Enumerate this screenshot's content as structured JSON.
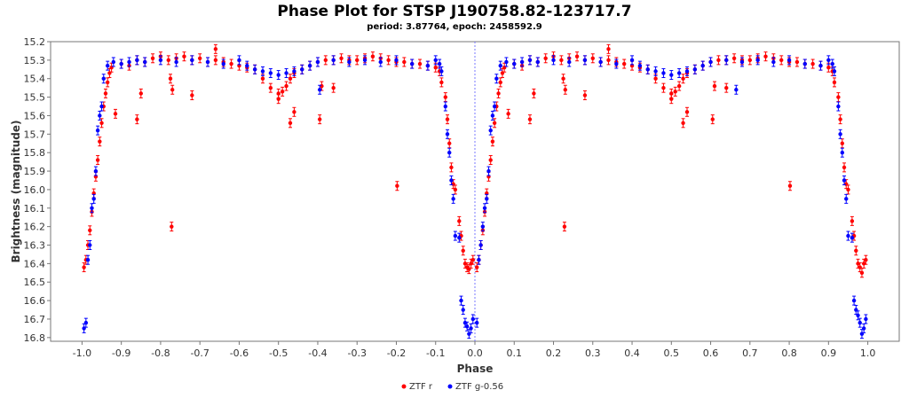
{
  "chart_data": {
    "type": "scatter",
    "title": "Phase Plot for STSP J190758.82-123717.7",
    "subtitle": "period: 3.87764, epoch: 2458592.9",
    "xlabel": "Phase",
    "ylabel": "Brightness (magnitude)",
    "xlim": [
      -1.08,
      1.08
    ],
    "ylim": [
      15.2,
      16.82
    ],
    "y_inverted": true,
    "xticks": [
      "-1.0",
      "-0.9",
      "-0.8",
      "-0.7",
      "-0.6",
      "-0.5",
      "-0.4",
      "-0.3",
      "-0.2",
      "-0.1",
      "0.0",
      "0.1",
      "0.2",
      "0.3",
      "0.4",
      "0.5",
      "0.6",
      "0.7",
      "0.8",
      "0.9",
      "1.0"
    ],
    "yticks": [
      "15.2",
      "15.3",
      "15.4",
      "15.5",
      "15.6",
      "15.7",
      "15.8",
      "15.9",
      "16.0",
      "16.1",
      "16.2",
      "16.3",
      "16.4",
      "16.5",
      "16.6",
      "16.7",
      "16.8"
    ],
    "vertical_marker_x": 0.0,
    "legend_position": "bottom",
    "series": [
      {
        "name": "ZTF r",
        "color": "#ff0000",
        "points": [
          [
            -0.995,
            16.42
          ],
          [
            -0.99,
            16.38
          ],
          [
            -0.985,
            16.3
          ],
          [
            -0.98,
            16.22
          ],
          [
            -0.975,
            16.12
          ],
          [
            -0.97,
            16.02
          ],
          [
            -0.965,
            15.93
          ],
          [
            -0.96,
            15.84
          ],
          [
            -0.955,
            15.74
          ],
          [
            -0.95,
            15.64
          ],
          [
            -0.945,
            15.55
          ],
          [
            -0.94,
            15.48
          ],
          [
            -0.935,
            15.42
          ],
          [
            -0.93,
            15.37
          ],
          [
            -0.925,
            15.34
          ],
          [
            -0.915,
            15.59
          ],
          [
            -0.86,
            15.62
          ],
          [
            -0.85,
            15.48
          ],
          [
            -0.775,
            15.4
          ],
          [
            -0.77,
            15.46
          ],
          [
            -0.772,
            16.2
          ],
          [
            -0.72,
            15.49
          ],
          [
            -0.66,
            15.24
          ],
          [
            -0.9,
            15.32
          ],
          [
            -0.88,
            15.33
          ],
          [
            -0.86,
            15.3
          ],
          [
            -0.84,
            15.31
          ],
          [
            -0.82,
            15.29
          ],
          [
            -0.8,
            15.28
          ],
          [
            -0.78,
            15.3
          ],
          [
            -0.76,
            15.29
          ],
          [
            -0.74,
            15.28
          ],
          [
            -0.72,
            15.3
          ],
          [
            -0.7,
            15.29
          ],
          [
            -0.68,
            15.31
          ],
          [
            -0.66,
            15.3
          ],
          [
            -0.64,
            15.31
          ],
          [
            -0.62,
            15.32
          ],
          [
            -0.6,
            15.33
          ],
          [
            -0.58,
            15.34
          ],
          [
            -0.56,
            15.35
          ],
          [
            -0.54,
            15.4
          ],
          [
            -0.52,
            15.45
          ],
          [
            -0.5,
            15.48
          ],
          [
            -0.49,
            15.47
          ],
          [
            -0.48,
            15.44
          ],
          [
            -0.47,
            15.4
          ],
          [
            -0.46,
            15.37
          ],
          [
            -0.44,
            15.35
          ],
          [
            -0.42,
            15.33
          ],
          [
            -0.5,
            15.51
          ],
          [
            -0.47,
            15.64
          ],
          [
            -0.46,
            15.58
          ],
          [
            -0.39,
            15.44
          ],
          [
            -0.395,
            15.62
          ],
          [
            -0.36,
            15.45
          ],
          [
            -0.4,
            15.31
          ],
          [
            -0.38,
            15.3
          ],
          [
            -0.36,
            15.3
          ],
          [
            -0.34,
            15.29
          ],
          [
            -0.32,
            15.3
          ],
          [
            -0.3,
            15.3
          ],
          [
            -0.28,
            15.29
          ],
          [
            -0.26,
            15.28
          ],
          [
            -0.24,
            15.29
          ],
          [
            -0.22,
            15.3
          ],
          [
            -0.2,
            15.31
          ],
          [
            -0.18,
            15.31
          ],
          [
            -0.16,
            15.32
          ],
          [
            -0.14,
            15.32
          ],
          [
            -0.12,
            15.33
          ],
          [
            -0.1,
            15.34
          ],
          [
            -0.09,
            15.36
          ],
          [
            -0.198,
            15.98
          ],
          [
            -0.085,
            15.42
          ],
          [
            -0.075,
            15.5
          ],
          [
            -0.07,
            15.62
          ],
          [
            -0.065,
            15.75
          ],
          [
            -0.06,
            15.88
          ],
          [
            -0.055,
            15.97
          ],
          [
            -0.05,
            16.0
          ],
          [
            -0.04,
            16.17
          ],
          [
            -0.035,
            16.25
          ],
          [
            -0.03,
            16.33
          ],
          [
            -0.025,
            16.4
          ],
          [
            -0.02,
            16.42
          ],
          [
            -0.015,
            16.43
          ],
          [
            -0.01,
            16.4
          ],
          [
            -0.005,
            16.38
          ],
          [
            0.005,
            16.42
          ],
          [
            0.01,
            16.38
          ],
          [
            0.015,
            16.3
          ],
          [
            0.02,
            16.22
          ],
          [
            0.025,
            16.12
          ],
          [
            0.03,
            16.02
          ],
          [
            0.035,
            15.93
          ],
          [
            0.04,
            15.84
          ],
          [
            0.045,
            15.74
          ],
          [
            0.05,
            15.64
          ],
          [
            0.055,
            15.55
          ],
          [
            0.06,
            15.48
          ],
          [
            0.065,
            15.42
          ],
          [
            0.07,
            15.37
          ],
          [
            0.075,
            15.34
          ],
          [
            0.085,
            15.59
          ],
          [
            0.14,
            15.62
          ],
          [
            0.15,
            15.48
          ],
          [
            0.225,
            15.4
          ],
          [
            0.23,
            15.46
          ],
          [
            0.228,
            16.2
          ],
          [
            0.28,
            15.49
          ],
          [
            0.34,
            15.24
          ],
          [
            0.1,
            15.32
          ],
          [
            0.12,
            15.33
          ],
          [
            0.14,
            15.3
          ],
          [
            0.16,
            15.31
          ],
          [
            0.18,
            15.29
          ],
          [
            0.2,
            15.28
          ],
          [
            0.22,
            15.3
          ],
          [
            0.24,
            15.29
          ],
          [
            0.26,
            15.28
          ],
          [
            0.28,
            15.3
          ],
          [
            0.3,
            15.29
          ],
          [
            0.32,
            15.31
          ],
          [
            0.34,
            15.3
          ],
          [
            0.36,
            15.31
          ],
          [
            0.38,
            15.32
          ],
          [
            0.4,
            15.33
          ],
          [
            0.42,
            15.34
          ],
          [
            0.44,
            15.35
          ],
          [
            0.46,
            15.4
          ],
          [
            0.48,
            15.45
          ],
          [
            0.5,
            15.48
          ],
          [
            0.51,
            15.47
          ],
          [
            0.52,
            15.44
          ],
          [
            0.53,
            15.4
          ],
          [
            0.54,
            15.37
          ],
          [
            0.56,
            15.35
          ],
          [
            0.58,
            15.33
          ],
          [
            0.5,
            15.51
          ],
          [
            0.53,
            15.64
          ],
          [
            0.54,
            15.58
          ],
          [
            0.61,
            15.44
          ],
          [
            0.605,
            15.62
          ],
          [
            0.64,
            15.45
          ],
          [
            0.6,
            15.31
          ],
          [
            0.62,
            15.3
          ],
          [
            0.64,
            15.3
          ],
          [
            0.66,
            15.29
          ],
          [
            0.68,
            15.3
          ],
          [
            0.7,
            15.3
          ],
          [
            0.72,
            15.29
          ],
          [
            0.74,
            15.28
          ],
          [
            0.76,
            15.29
          ],
          [
            0.78,
            15.3
          ],
          [
            0.8,
            15.31
          ],
          [
            0.82,
            15.31
          ],
          [
            0.84,
            15.32
          ],
          [
            0.86,
            15.32
          ],
          [
            0.88,
            15.33
          ],
          [
            0.9,
            15.34
          ],
          [
            0.91,
            15.36
          ],
          [
            0.802,
            15.98
          ],
          [
            0.915,
            15.42
          ],
          [
            0.925,
            15.5
          ],
          [
            0.93,
            15.62
          ],
          [
            0.935,
            15.75
          ],
          [
            0.94,
            15.88
          ],
          [
            0.945,
            15.97
          ],
          [
            0.95,
            16.0
          ],
          [
            0.96,
            16.17
          ],
          [
            0.965,
            16.25
          ],
          [
            0.97,
            16.33
          ],
          [
            0.975,
            16.4
          ],
          [
            0.98,
            16.42
          ],
          [
            0.985,
            16.45
          ],
          [
            0.99,
            16.4
          ],
          [
            0.995,
            16.38
          ]
        ]
      },
      {
        "name": "ZTF g-0.56",
        "color": "#0000ff",
        "points": [
          [
            -0.995,
            16.75
          ],
          [
            -0.99,
            16.72
          ],
          [
            -0.985,
            16.38
          ],
          [
            -0.98,
            16.3
          ],
          [
            -0.975,
            16.1
          ],
          [
            -0.97,
            16.05
          ],
          [
            -0.965,
            15.9
          ],
          [
            -0.96,
            15.68
          ],
          [
            -0.955,
            15.6
          ],
          [
            -0.95,
            15.55
          ],
          [
            -0.945,
            15.4
          ],
          [
            -0.935,
            15.33
          ],
          [
            -0.92,
            15.31
          ],
          [
            -0.9,
            15.32
          ],
          [
            -0.88,
            15.31
          ],
          [
            -0.86,
            15.3
          ],
          [
            -0.84,
            15.31
          ],
          [
            -0.8,
            15.3
          ],
          [
            -0.76,
            15.31
          ],
          [
            -0.72,
            15.3
          ],
          [
            -0.68,
            15.31
          ],
          [
            -0.64,
            15.32
          ],
          [
            -0.6,
            15.3
          ],
          [
            -0.58,
            15.33
          ],
          [
            -0.56,
            15.35
          ],
          [
            -0.54,
            15.36
          ],
          [
            -0.52,
            15.37
          ],
          [
            -0.5,
            15.38
          ],
          [
            -0.48,
            15.37
          ],
          [
            -0.46,
            15.36
          ],
          [
            -0.44,
            15.35
          ],
          [
            -0.42,
            15.33
          ],
          [
            -0.4,
            15.31
          ],
          [
            -0.36,
            15.3
          ],
          [
            -0.32,
            15.31
          ],
          [
            -0.28,
            15.3
          ],
          [
            -0.24,
            15.31
          ],
          [
            -0.2,
            15.3
          ],
          [
            -0.16,
            15.32
          ],
          [
            -0.12,
            15.33
          ],
          [
            -0.1,
            15.3
          ],
          [
            -0.09,
            15.32
          ],
          [
            -0.395,
            15.46
          ],
          [
            -0.085,
            15.36
          ],
          [
            -0.075,
            15.55
          ],
          [
            -0.07,
            15.7
          ],
          [
            -0.065,
            15.8
          ],
          [
            -0.06,
            15.95
          ],
          [
            -0.055,
            16.05
          ],
          [
            -0.05,
            16.25
          ],
          [
            -0.04,
            16.26
          ],
          [
            -0.035,
            16.6
          ],
          [
            -0.03,
            16.65
          ],
          [
            -0.025,
            16.72
          ],
          [
            -0.02,
            16.74
          ],
          [
            -0.015,
            16.78
          ],
          [
            -0.01,
            16.75
          ],
          [
            -0.005,
            16.7
          ],
          [
            0.005,
            16.72
          ],
          [
            0.01,
            16.38
          ],
          [
            0.015,
            16.3
          ],
          [
            0.02,
            16.2
          ],
          [
            0.025,
            16.1
          ],
          [
            0.03,
            16.05
          ],
          [
            0.035,
            15.9
          ],
          [
            0.04,
            15.68
          ],
          [
            0.045,
            15.6
          ],
          [
            0.05,
            15.55
          ],
          [
            0.055,
            15.4
          ],
          [
            0.065,
            15.33
          ],
          [
            0.08,
            15.31
          ],
          [
            0.1,
            15.32
          ],
          [
            0.12,
            15.31
          ],
          [
            0.14,
            15.3
          ],
          [
            0.16,
            15.31
          ],
          [
            0.2,
            15.3
          ],
          [
            0.24,
            15.31
          ],
          [
            0.28,
            15.3
          ],
          [
            0.32,
            15.31
          ],
          [
            0.36,
            15.32
          ],
          [
            0.4,
            15.3
          ],
          [
            0.42,
            15.33
          ],
          [
            0.44,
            15.35
          ],
          [
            0.46,
            15.36
          ],
          [
            0.48,
            15.37
          ],
          [
            0.5,
            15.38
          ],
          [
            0.52,
            15.37
          ],
          [
            0.54,
            15.36
          ],
          [
            0.56,
            15.35
          ],
          [
            0.58,
            15.33
          ],
          [
            0.6,
            15.31
          ],
          [
            0.64,
            15.3
          ],
          [
            0.68,
            15.31
          ],
          [
            0.72,
            15.3
          ],
          [
            0.76,
            15.31
          ],
          [
            0.8,
            15.3
          ],
          [
            0.84,
            15.32
          ],
          [
            0.88,
            15.33
          ],
          [
            0.9,
            15.3
          ],
          [
            0.91,
            15.32
          ],
          [
            0.665,
            15.46
          ],
          [
            0.915,
            15.36
          ],
          [
            0.925,
            15.55
          ],
          [
            0.93,
            15.7
          ],
          [
            0.935,
            15.8
          ],
          [
            0.94,
            15.95
          ],
          [
            0.945,
            16.05
          ],
          [
            0.95,
            16.25
          ],
          [
            0.96,
            16.26
          ],
          [
            0.965,
            16.6
          ],
          [
            0.97,
            16.65
          ],
          [
            0.975,
            16.68
          ],
          [
            0.98,
            16.72
          ],
          [
            0.985,
            16.78
          ],
          [
            0.99,
            16.75
          ],
          [
            0.995,
            16.7
          ]
        ]
      }
    ]
  }
}
